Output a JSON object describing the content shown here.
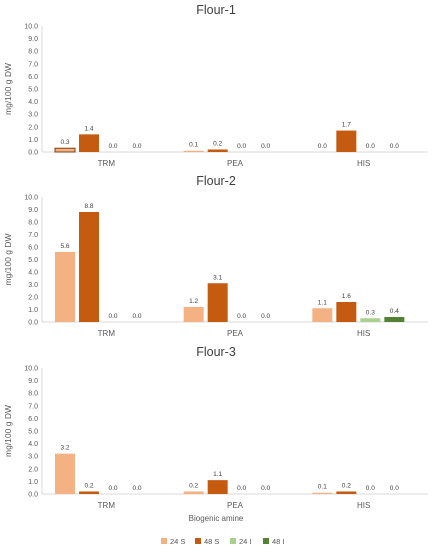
{
  "chart_data": [
    {
      "type": "bar",
      "title": "Flour-1",
      "ylabel": "mg/100 g DW",
      "xlabel": "",
      "ylim": [
        0,
        10
      ],
      "yticks": [
        "0.0",
        "1.0",
        "2.0",
        "3.0",
        "4.0",
        "5.0",
        "6.0",
        "7.0",
        "8.0",
        "9.0",
        "10.0"
      ],
      "grid": false,
      "categories": [
        "TRM",
        "PEA",
        "HIS"
      ],
      "series": [
        {
          "name": "24 S",
          "values": [
            0.3,
            0.1,
            0.0
          ],
          "labels": [
            "0.3",
            "0.1",
            "0.0"
          ]
        },
        {
          "name": "48 S",
          "values": [
            1.4,
            0.2,
            1.7
          ],
          "labels": [
            "1.4",
            "0.2",
            "1.7"
          ]
        },
        {
          "name": "24 I",
          "values": [
            0.0,
            0.0,
            0.0
          ],
          "labels": [
            "0.0",
            "0.0",
            "0.0"
          ]
        },
        {
          "name": "48 I",
          "values": [
            0.0,
            0.0,
            0.0
          ],
          "labels": [
            "0.0",
            "0.0",
            "0.0"
          ]
        }
      ]
    },
    {
      "type": "bar",
      "title": "Flour-2",
      "ylabel": "mg/100 g DW",
      "xlabel": "",
      "ylim": [
        0,
        10
      ],
      "yticks": [
        "0.0",
        "1.0",
        "2.0",
        "3.0",
        "4.0",
        "5.0",
        "6.0",
        "7.0",
        "8.0",
        "9.0",
        "10.0"
      ],
      "grid": false,
      "categories": [
        "TRM",
        "PEA",
        "HIS"
      ],
      "series": [
        {
          "name": "24 S",
          "values": [
            5.6,
            1.2,
            1.1
          ],
          "labels": [
            "5.6",
            "1.2",
            "1.1"
          ]
        },
        {
          "name": "48 S",
          "values": [
            8.8,
            3.1,
            1.6
          ],
          "labels": [
            "8.8",
            "3.1",
            "1.6"
          ]
        },
        {
          "name": "24 I",
          "values": [
            0.0,
            0.0,
            0.3
          ],
          "labels": [
            "0.0",
            "0.0",
            "0.3"
          ]
        },
        {
          "name": "48 I",
          "values": [
            0.0,
            0.0,
            0.4
          ],
          "labels": [
            "0.0",
            "0.0",
            "0.4"
          ]
        }
      ]
    },
    {
      "type": "bar",
      "title": "Flour-3",
      "ylabel": "mg/100 g DW",
      "xlabel": "Biogenic amine",
      "ylim": [
        0,
        10
      ],
      "yticks": [
        "0.0",
        "1.0",
        "2.0",
        "3.0",
        "4.0",
        "5.0",
        "6.0",
        "7.0",
        "8.0",
        "9.0",
        "10.0"
      ],
      "grid": false,
      "categories": [
        "TRM",
        "PEA",
        "HIS"
      ],
      "series": [
        {
          "name": "24 S",
          "values": [
            3.2,
            0.2,
            0.1
          ],
          "labels": [
            "3.2",
            "0.2",
            "0.1"
          ]
        },
        {
          "name": "48 S",
          "values": [
            0.2,
            1.1,
            0.2
          ],
          "labels": [
            "0.2",
            "1.1",
            "0.2"
          ]
        },
        {
          "name": "24 I",
          "values": [
            0.0,
            0.0,
            0.0
          ],
          "labels": [
            "0.0",
            "0.0",
            "0.0"
          ]
        },
        {
          "name": "48 I",
          "values": [
            0.0,
            0.0,
            0.0
          ],
          "labels": [
            "0.0",
            "0.0",
            "0.0"
          ]
        }
      ]
    }
  ],
  "legend": {
    "placement": "bottom",
    "entries": [
      {
        "name": "24 S",
        "color": "#F4B183"
      },
      {
        "name": "48 S",
        "color": "#C55A11"
      },
      {
        "name": "24 I",
        "color": "#A9D18E"
      },
      {
        "name": "48 I",
        "color": "#548235"
      }
    ]
  },
  "colors": {
    "24 S": "#F4B183",
    "48 S": "#C55A11",
    "24 I": "#A9D18E",
    "48 I": "#548235"
  }
}
